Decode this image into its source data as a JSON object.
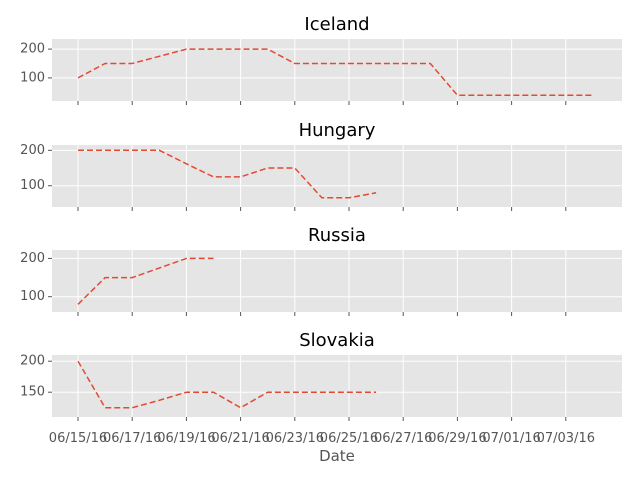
{
  "chart_data": {
    "type": "line",
    "xlabel": "Date",
    "x_tick_labels": [
      "06/15/16",
      "06/17/16",
      "06/19/16",
      "06/21/16",
      "06/23/16",
      "06/25/16",
      "06/27/16",
      "06/29/16",
      "07/01/16",
      "07/03/16"
    ],
    "colors": {
      "line": "#e24a33",
      "panel_bg": "#e5e5e5",
      "grid": "#ffffff"
    },
    "panels": [
      {
        "title": "Iceland",
        "yticks": [
          100,
          200
        ],
        "ylim": [
          20,
          235
        ],
        "series": [
          {
            "name": "Iceland",
            "x": [
              "06/15/16",
              "06/16/16",
              "06/17/16",
              "06/18/16",
              "06/19/16",
              "06/20/16",
              "06/21/16",
              "06/22/16",
              "06/23/16",
              "06/24/16",
              "06/25/16",
              "06/26/16",
              "06/27/16",
              "06/28/16",
              "06/29/16",
              "06/30/16",
              "07/01/16",
              "07/02/16",
              "07/03/16",
              "07/04/16"
            ],
            "values": [
              100,
              150,
              150,
              175,
              200,
              200,
              200,
              200,
              150,
              150,
              150,
              150,
              150,
              150,
              40,
              40,
              40,
              40,
              40,
              40
            ]
          }
        ]
      },
      {
        "title": "Hungary",
        "yticks": [
          100,
          200
        ],
        "ylim": [
          40,
          215
        ],
        "series": [
          {
            "name": "Hungary",
            "x": [
              "06/15/16",
              "06/16/16",
              "06/17/16",
              "06/18/16",
              "06/19/16",
              "06/20/16",
              "06/21/16",
              "06/22/16",
              "06/23/16",
              "06/24/16",
              "06/25/16",
              "06/26/16"
            ],
            "values": [
              200,
              200,
              200,
              200,
              162,
              125,
              125,
              150,
              150,
              66,
              66,
              80
            ]
          }
        ]
      },
      {
        "title": "Russia",
        "yticks": [
          100,
          200
        ],
        "ylim": [
          60,
          222
        ],
        "series": [
          {
            "name": "Russia",
            "x": [
              "06/15/16",
              "06/16/16",
              "06/17/16",
              "06/18/16",
              "06/19/16",
              "06/20/16"
            ],
            "values": [
              80,
              150,
              150,
              175,
              200,
              200
            ]
          }
        ]
      },
      {
        "title": "Slovakia",
        "yticks": [
          150,
          200
        ],
        "ylim": [
          110,
          210
        ],
        "series": [
          {
            "name": "Slovakia",
            "x": [
              "06/15/16",
              "06/16/16",
              "06/17/16",
              "06/18/16",
              "06/19/16",
              "06/20/16",
              "06/21/16",
              "06/22/16",
              "06/23/16",
              "06/24/16",
              "06/25/16",
              "06/26/16"
            ],
            "values": [
              200,
              125,
              125,
              137,
              150,
              150,
              125,
              150,
              150,
              150,
              150,
              150
            ]
          }
        ]
      }
    ]
  }
}
